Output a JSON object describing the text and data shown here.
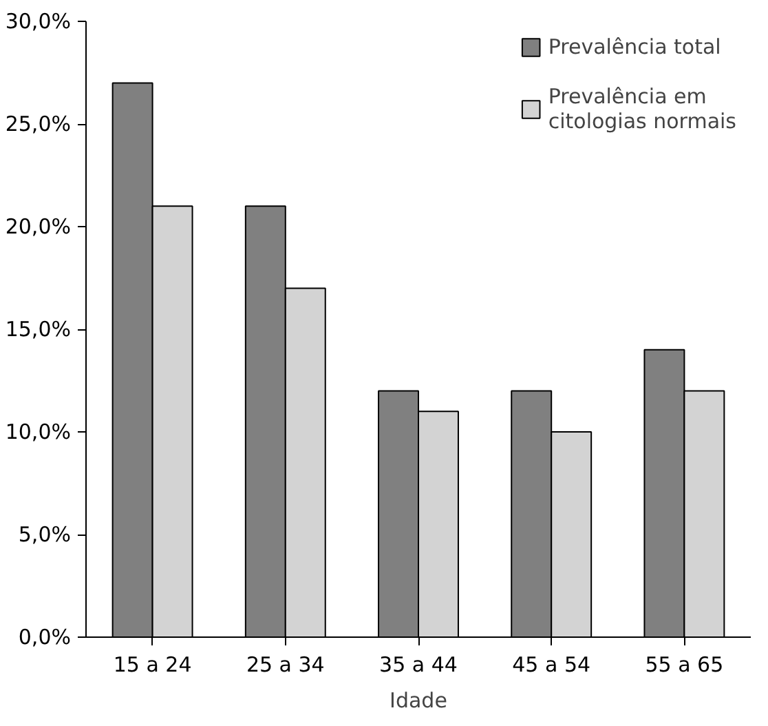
{
  "chart_data": {
    "type": "bar",
    "xlabel": "Idade",
    "categories": [
      "15 a 24",
      "25 a 34",
      "35 a 44",
      "45 a 54",
      "55 a 65"
    ],
    "series": [
      {
        "name": "Prevalência total",
        "color": "#808080",
        "values": [
          27,
          21,
          12,
          12,
          14
        ]
      },
      {
        "name": "Prevalência em citologias normais",
        "color": "#d3d3d3",
        "values": [
          21,
          17,
          11,
          10,
          12
        ]
      }
    ],
    "ylim": [
      0,
      30
    ],
    "yticks": [
      {
        "value": 0,
        "label": "0,0%"
      },
      {
        "value": 5,
        "label": "5,0%"
      },
      {
        "value": 10,
        "label": "10,0%"
      },
      {
        "value": 15,
        "label": "15,0%"
      },
      {
        "value": 20,
        "label": "20,0%"
      },
      {
        "value": 25,
        "label": "25,0%"
      },
      {
        "value": 30,
        "label": "30,0%"
      }
    ],
    "grid": false,
    "legend": "top right"
  }
}
